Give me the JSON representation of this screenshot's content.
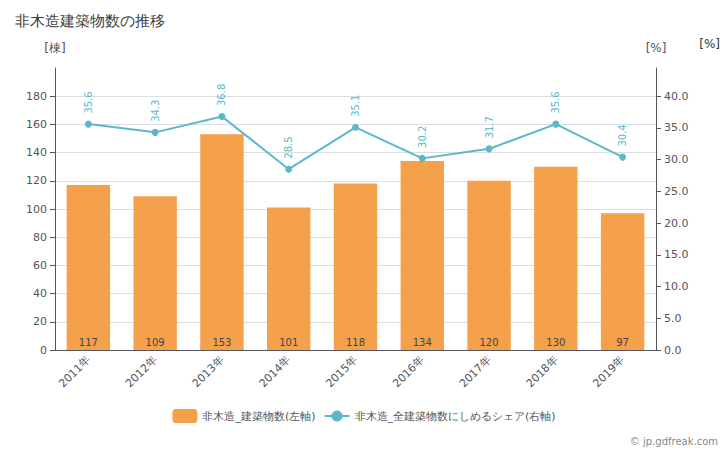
{
  "chart_data": {
    "type": "bar",
    "title": "非木造建築物数の推移",
    "categories": [
      "2011年",
      "2012年",
      "2013年",
      "2014年",
      "2015年",
      "2016年",
      "2017年",
      "2018年",
      "2019年"
    ],
    "series": [
      {
        "name": "非木造_建築物数(左軸)",
        "type": "bar",
        "color": "#F5A04A",
        "values": [
          117,
          109,
          153,
          101,
          118,
          134,
          120,
          130,
          97
        ],
        "data_labels": true
      },
      {
        "name": "非木造_全建築物数にしめるシェア(右軸)",
        "type": "line",
        "color": "#5BB8C8",
        "axis": "y2",
        "marker": "circle",
        "values": [
          35.6,
          34.3,
          36.8,
          28.5,
          35.1,
          30.2,
          31.7,
          35.6,
          30.4
        ],
        "data_labels": true
      }
    ],
    "ylabel": "[棟]",
    "y2label": "[%]",
    "ylim": [
      0,
      200
    ],
    "yticks": [
      0,
      20,
      40,
      60,
      80,
      100,
      120,
      140,
      160,
      180
    ],
    "y2lim": [
      0.0,
      44.444
    ],
    "y2ticks": [
      {
        "value": 0.0,
        "label": "0.0"
      },
      {
        "value": 5.0,
        "label": "5.0"
      },
      {
        "value": 10.0,
        "label": "10.0"
      },
      {
        "value": 15.0,
        "label": "15.0"
      },
      {
        "value": 20.0,
        "label": "20.0"
      },
      {
        "value": 25.0,
        "label": "25.0"
      },
      {
        "value": 30.0,
        "label": "30.0"
      },
      {
        "value": 35.0,
        "label": "35.0"
      },
      {
        "value": 40.0,
        "label": "40.0"
      }
    ],
    "grid": true,
    "legend": "bottom",
    "annotations": [
      "[%]",
      "© jp.gdfreak.com"
    ]
  }
}
